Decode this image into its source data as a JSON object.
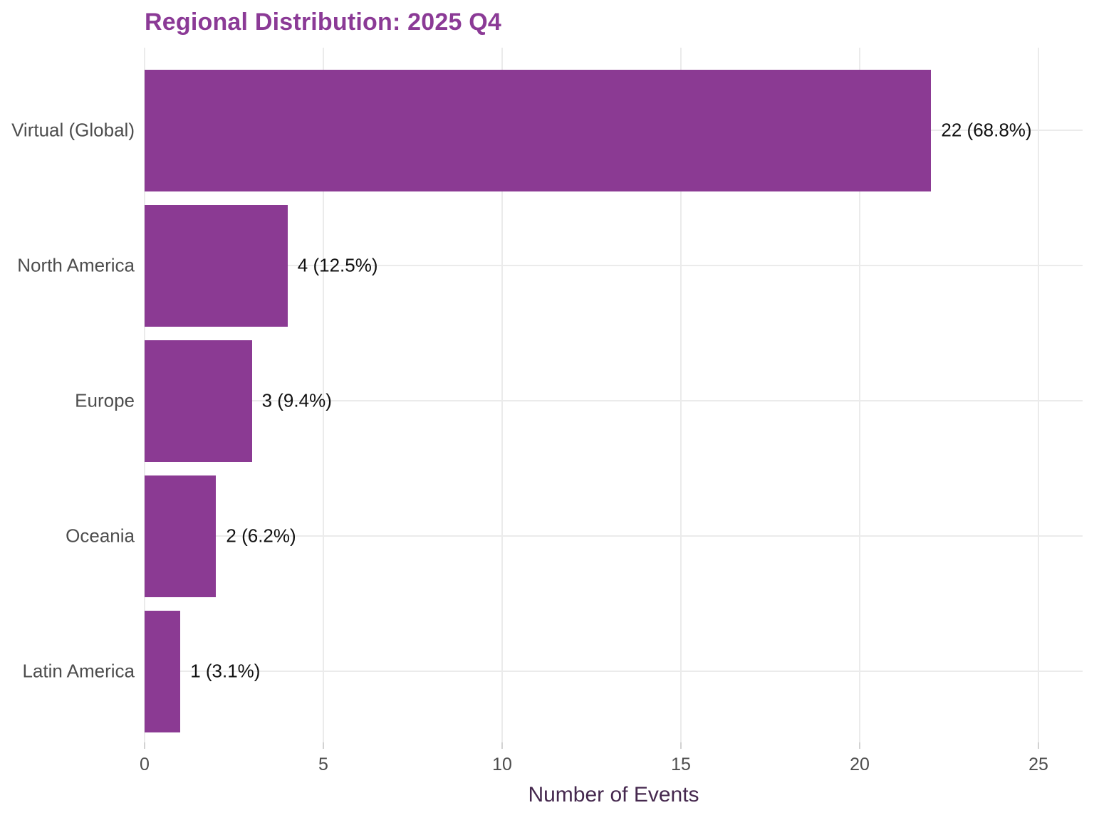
{
  "chart_data": {
    "type": "bar",
    "orientation": "horizontal",
    "title": "Regional Distribution: 2025 Q4",
    "xlabel": "Number of Events",
    "ylabel": "",
    "categories": [
      "Virtual (Global)",
      "North America",
      "Europe",
      "Oceania",
      "Latin America"
    ],
    "values": [
      22,
      4,
      3,
      2,
      1
    ],
    "percent_labels": [
      "22 (68.8%)",
      "4 (12.5%)",
      "3 (9.4%)",
      "2 (6.2%)",
      "1 (3.1%)"
    ],
    "x_ticks": [
      "0",
      "5",
      "10",
      "15",
      "20",
      "25"
    ],
    "x_tick_values": [
      0,
      5,
      10,
      15,
      20,
      25
    ],
    "xlim": [
      0,
      26.2
    ],
    "grid": "major-only",
    "legend": "none",
    "colors": {
      "bar": "#8B3A93",
      "title": "#8B3A96",
      "axis_title": "#45284E",
      "tick_label": "#4D4D4D",
      "category_label": "#4D4D4D",
      "value_label": "#111111",
      "gridline": "#EBEBEB",
      "tick_mark": "#D2D2D2",
      "background": "#FFFFFF"
    }
  }
}
